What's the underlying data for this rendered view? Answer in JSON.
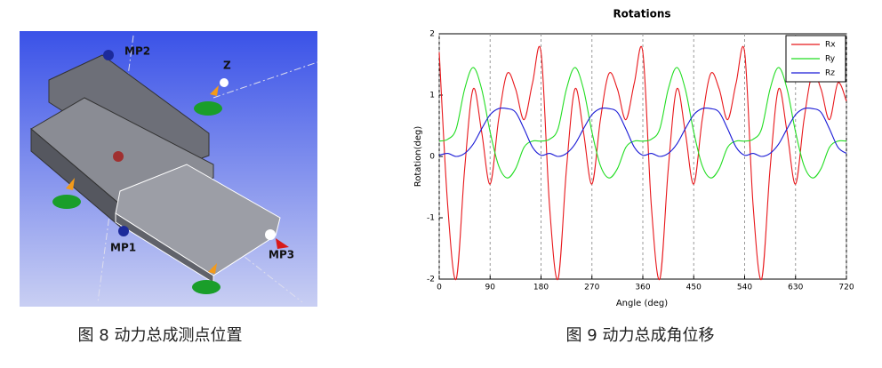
{
  "figure_left": {
    "labels": [
      "MP2",
      "Z",
      "MP1",
      "MP3"
    ],
    "caption": "图 8 动力总成测点位置"
  },
  "chart_data": {
    "type": "line",
    "title": "Rotations",
    "x_label": "Angle (deg)",
    "y_label": "Rotation(deg)",
    "x": [
      0,
      15,
      30,
      45,
      60,
      75,
      90,
      105,
      120,
      135,
      150,
      165,
      180,
      195,
      210,
      225,
      240,
      255,
      270,
      285,
      300,
      315,
      330,
      345,
      360,
      375,
      390,
      405,
      420,
      435,
      450,
      465,
      480,
      495,
      510,
      525,
      540,
      555,
      570,
      585,
      600,
      615,
      630,
      645,
      660,
      675,
      690,
      705,
      720
    ],
    "series": [
      {
        "name": "Rx",
        "color": "#e8171b",
        "values": [
          1.7,
          -0.8,
          -2.0,
          -0.2,
          1.1,
          0.4,
          -0.45,
          0.6,
          1.35,
          1.1,
          0.6,
          1.2,
          1.7,
          -0.8,
          -2.0,
          -0.2,
          1.1,
          0.4,
          -0.45,
          0.6,
          1.35,
          1.1,
          0.6,
          1.2,
          1.7,
          -0.8,
          -2.0,
          -0.2,
          1.1,
          0.4,
          -0.45,
          0.6,
          1.35,
          1.1,
          0.6,
          1.2,
          1.7,
          -0.8,
          -2.0,
          -0.2,
          1.1,
          0.4,
          -0.45,
          0.6,
          1.35,
          1.1,
          0.6,
          1.2,
          0.9
        ]
      },
      {
        "name": "Ry",
        "color": "#22dd22",
        "values": [
          0.25,
          0.28,
          0.45,
          1.1,
          1.45,
          1.1,
          0.4,
          -0.15,
          -0.35,
          -0.2,
          0.15,
          0.25,
          0.25,
          0.28,
          0.45,
          1.1,
          1.45,
          1.1,
          0.4,
          -0.15,
          -0.35,
          -0.2,
          0.15,
          0.25,
          0.25,
          0.28,
          0.45,
          1.1,
          1.45,
          1.1,
          0.4,
          -0.15,
          -0.35,
          -0.2,
          0.15,
          0.25,
          0.25,
          0.28,
          0.45,
          1.1,
          1.45,
          1.1,
          0.4,
          -0.15,
          -0.35,
          -0.2,
          0.15,
          0.25,
          0.25
        ]
      },
      {
        "name": "Rz",
        "color": "#1a1ad6",
        "values": [
          0.02,
          0.05,
          0,
          0.05,
          0.2,
          0.45,
          0.68,
          0.78,
          0.78,
          0.72,
          0.45,
          0.15,
          0.02,
          0.05,
          0,
          0.05,
          0.2,
          0.45,
          0.68,
          0.78,
          0.78,
          0.72,
          0.45,
          0.15,
          0.02,
          0.05,
          0,
          0.05,
          0.2,
          0.45,
          0.68,
          0.78,
          0.78,
          0.72,
          0.45,
          0.15,
          0.02,
          0.05,
          0,
          0.05,
          0.2,
          0.45,
          0.68,
          0.78,
          0.78,
          0.72,
          0.45,
          0.15,
          0.05
        ]
      }
    ],
    "xlim": [
      0,
      720
    ],
    "xticks": [
      0,
      90,
      180,
      270,
      360,
      450,
      540,
      630,
      720
    ],
    "ylim": [
      -2,
      2
    ],
    "yticks": [
      -2,
      -1,
      0,
      1,
      2
    ],
    "grid": "x",
    "legend": "upper right",
    "caption": "图 9 动力总成角位移"
  }
}
